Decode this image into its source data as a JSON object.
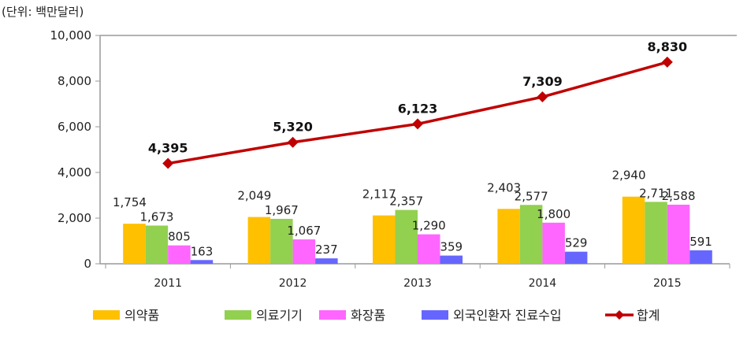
{
  "chart_data": {
    "type": "bar",
    "unit_label": "(단위: 백만달러)",
    "categories": [
      "2011",
      "2012",
      "2013",
      "2014",
      "2015"
    ],
    "ylim": [
      0,
      10000
    ],
    "yticks": [
      0,
      2000,
      4000,
      6000,
      8000,
      10000
    ],
    "ytick_labels": [
      "0",
      "2,000",
      "4,000",
      "6,000",
      "8,000",
      "10,000"
    ],
    "grid": false,
    "legend_position": "bottom",
    "series": [
      {
        "name": "의약품",
        "type": "bar",
        "color": "#FFC000",
        "values": [
          1754,
          2049,
          2117,
          2403,
          2940
        ],
        "labels": [
          "1,754",
          "2,049",
          "2,117",
          "2,403",
          "2,940"
        ]
      },
      {
        "name": "의료기기",
        "type": "bar",
        "color": "#92D050",
        "values": [
          1673,
          1967,
          2357,
          2577,
          2711
        ],
        "labels": [
          "1,673",
          "1,967",
          "2,357",
          "2,577",
          "2,711"
        ]
      },
      {
        "name": "화장품",
        "type": "bar",
        "color": "#FF66FF",
        "values": [
          805,
          1067,
          1290,
          1800,
          2588
        ],
        "labels": [
          "805",
          "1,067",
          "1,290",
          "1,800",
          "2,588"
        ]
      },
      {
        "name": "외국인환자 진료수입",
        "type": "bar",
        "color": "#6666FF",
        "values": [
          163,
          237,
          359,
          529,
          591
        ],
        "labels": [
          "163",
          "237",
          "359",
          "529",
          "591"
        ]
      },
      {
        "name": "합계",
        "type": "line",
        "color": "#C00000",
        "values": [
          4395,
          5320,
          6123,
          7309,
          8830
        ],
        "labels": [
          "4,395",
          "5,320",
          "6,123",
          "7,309",
          "8,830"
        ]
      }
    ]
  }
}
